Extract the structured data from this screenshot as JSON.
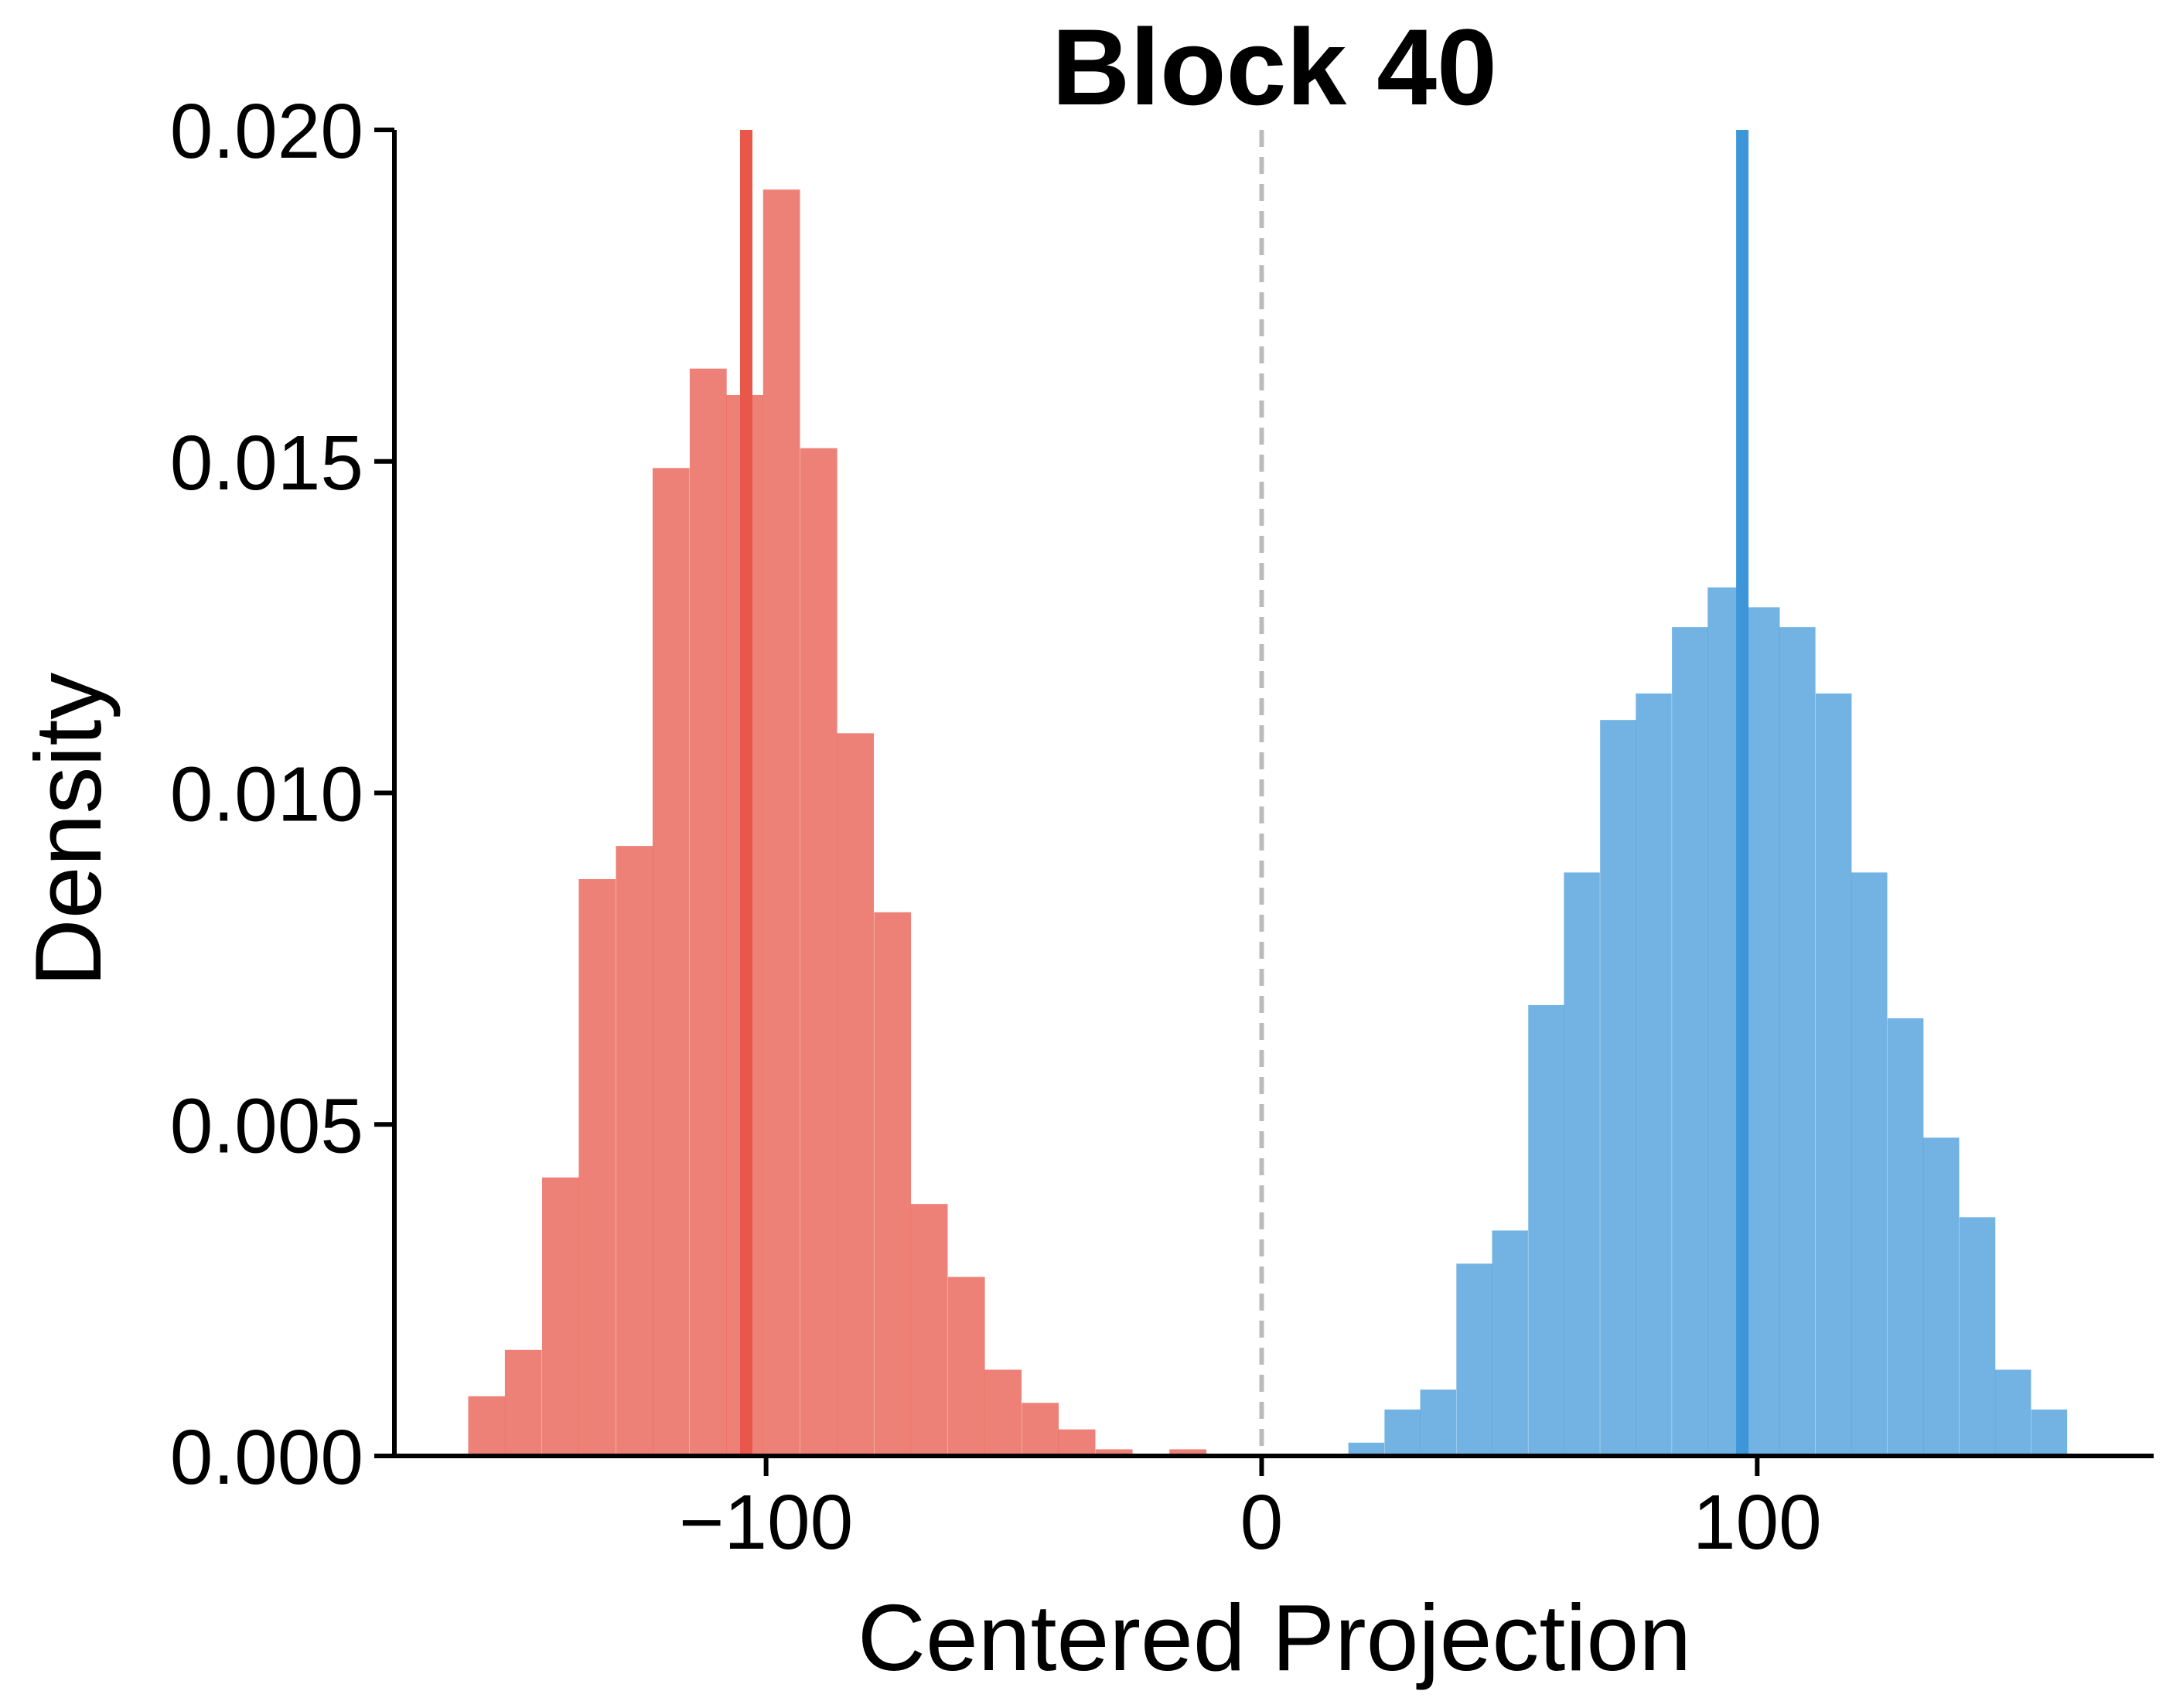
{
  "chart_data": {
    "type": "histogram",
    "title": "Block 40",
    "xlabel": "Centered Projection",
    "ylabel": "Density",
    "xlim": [
      -175,
      180
    ],
    "ylim": [
      0,
      0.02
    ],
    "xticks": [
      -100,
      0,
      100
    ],
    "xtick_labels": [
      "−100",
      "0",
      "100"
    ],
    "yticks": [
      0,
      0.005,
      0.01,
      0.015,
      0.02
    ],
    "ytick_labels": [
      "0.000",
      "0.005",
      "0.010",
      "0.015",
      "0.020"
    ],
    "grid": false,
    "legend": "none",
    "reference_line": {
      "x": 0,
      "style": "dashed",
      "color": "#bbbbbb"
    },
    "series": [
      {
        "color": "#e8574a",
        "bar_opacity": 0.75,
        "mean": -104,
        "bin_width": 7.45,
        "bin_starts": [
          -160.1,
          -152.7,
          -145.2,
          -137.8,
          -130.3,
          -122.9,
          -115.4,
          -108.0,
          -100.6,
          -93.1,
          -85.7,
          -78.2,
          -70.8,
          -63.3,
          -55.9,
          -48.4,
          -41.0,
          -33.5,
          -26.1,
          -18.6
        ],
        "densities": [
          0.0009,
          0.0016,
          0.0042,
          0.0087,
          0.0092,
          0.0149,
          0.0164,
          0.016,
          0.0191,
          0.0152,
          0.0109,
          0.0082,
          0.0038,
          0.0027,
          0.0013,
          0.0008,
          0.0004,
          0.0001,
          0.0,
          0.0001
        ]
      },
      {
        "color": "#3c96d8",
        "bar_opacity": 0.72,
        "mean": 97,
        "bin_width": 7.25,
        "bin_starts": [
          17.5,
          24.8,
          32.0,
          39.3,
          46.5,
          53.8,
          61.0,
          68.3,
          75.5,
          82.8,
          90.0,
          97.3,
          104.5,
          111.8,
          119.0,
          126.3,
          133.5,
          140.8,
          148.0,
          155.3
        ],
        "densities": [
          0.0002,
          0.0007,
          0.001,
          0.0029,
          0.0034,
          0.0068,
          0.0088,
          0.0111,
          0.0115,
          0.0125,
          0.0131,
          0.0128,
          0.0125,
          0.0115,
          0.0088,
          0.0066,
          0.0048,
          0.0036,
          0.0013,
          0.0007
        ]
      }
    ]
  }
}
